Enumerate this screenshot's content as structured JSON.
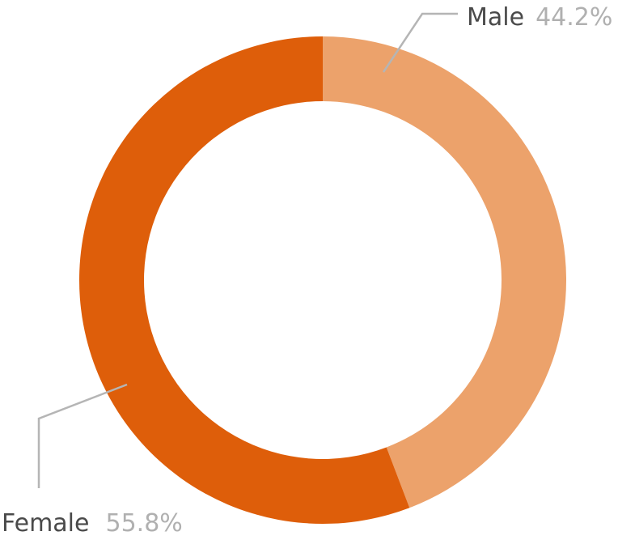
{
  "chart_data": {
    "type": "pie",
    "variant": "donut",
    "categories": [
      "Male",
      "Female"
    ],
    "values": [
      44.2,
      55.8
    ],
    "value_labels": [
      "44.2%",
      "55.8%"
    ],
    "colors": [
      "#eca26b",
      "#de5e0a"
    ],
    "legend": "none"
  }
}
